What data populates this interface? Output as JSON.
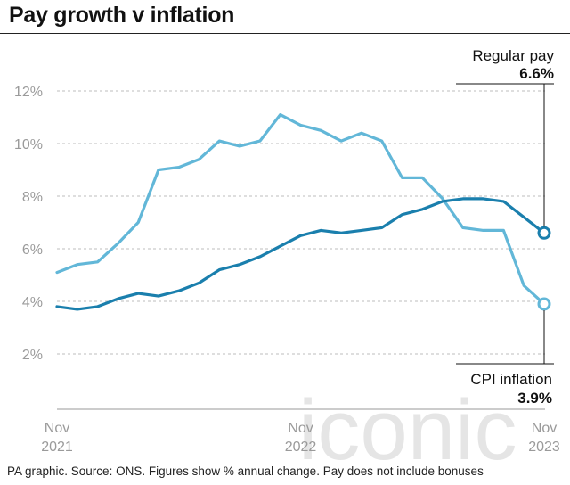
{
  "title": "Pay growth v inflation",
  "footer": "PA graphic. Source: ONS. Figures show % annual change. Pay does not include bonuses",
  "watermark": "iconic",
  "colors": {
    "regular_pay": "#1a7fad",
    "cpi_inflation": "#62b7d8",
    "grid": "#c9c9c9",
    "axis": "#9a9a9a"
  },
  "chart_data": {
    "type": "line",
    "title": "Pay growth v inflation",
    "x_tick_labels": [
      {
        "index": 0,
        "lines": [
          "Nov",
          "2021"
        ]
      },
      {
        "index": 12,
        "lines": [
          "Nov",
          "2022"
        ]
      },
      {
        "index": 24,
        "lines": [
          "Nov",
          "2023"
        ]
      }
    ],
    "x": [
      "Nov 2021",
      "Dec 2021",
      "Jan 2022",
      "Feb 2022",
      "Mar 2022",
      "Apr 2022",
      "May 2022",
      "Jun 2022",
      "Jul 2022",
      "Aug 2022",
      "Sep 2022",
      "Oct 2022",
      "Nov 2022",
      "Dec 2022",
      "Jan 2023",
      "Feb 2023",
      "Mar 2023",
      "Apr 2023",
      "May 2023",
      "Jun 2023",
      "Jul 2023",
      "Aug 2023",
      "Sep 2023",
      "Oct 2023",
      "Nov 2023"
    ],
    "y_ticks": [
      2,
      4,
      6,
      8,
      10,
      12
    ],
    "y_tick_labels": [
      "2%",
      "4%",
      "6%",
      "8%",
      "10%",
      "12%"
    ],
    "ylim": [
      0,
      12.5
    ],
    "grid": "horizontal dashed",
    "series": [
      {
        "name": "Regular pay",
        "end_label": "6.6%",
        "color_key": "regular_pay",
        "values": [
          3.8,
          3.7,
          3.8,
          4.1,
          4.3,
          4.2,
          4.4,
          4.7,
          5.2,
          5.4,
          5.7,
          6.1,
          6.5,
          6.7,
          6.6,
          6.7,
          6.8,
          7.3,
          7.5,
          7.8,
          7.9,
          7.9,
          7.8,
          null,
          6.6
        ]
      },
      {
        "name": "CPI inflation",
        "end_label": "3.9%",
        "color_key": "cpi_inflation",
        "values": [
          5.1,
          5.4,
          5.5,
          6.2,
          7.0,
          9.0,
          9.1,
          9.4,
          10.1,
          9.9,
          10.1,
          11.1,
          10.7,
          10.5,
          10.1,
          10.4,
          10.1,
          8.7,
          8.7,
          7.9,
          6.8,
          6.7,
          6.7,
          4.6,
          3.9
        ]
      }
    ]
  }
}
